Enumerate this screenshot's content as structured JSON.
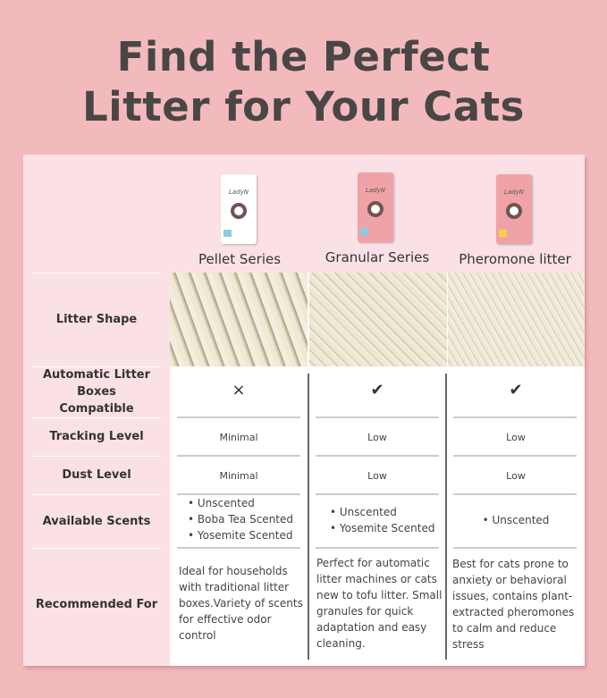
{
  "title": {
    "line1": "Find the Perfect",
    "line2": "Litter for Your Cats"
  },
  "colors": {
    "background": "#f3babe",
    "label_column": "#fbe1e5",
    "pellet_box": "#ffffff",
    "granular_box": "#f0a3a6",
    "pheromone_box": "#f0a3a6"
  },
  "products": [
    {
      "name": "Pellet Series",
      "logo": "LadyN",
      "auto_compatible": "×",
      "auto_icon": "x-mark-icon",
      "tracking": "Minimal",
      "dust": "Minimal",
      "scents": [
        "• Unscented",
        "• Boba Tea Scented",
        "• Yosemite Scented"
      ],
      "recommended": "Ideal for households with traditional litter boxes.Variety of scents for effective odor control"
    },
    {
      "name": "Granular Series",
      "logo": "LadyN",
      "auto_compatible": "✔",
      "auto_icon": "check-mark-icon",
      "tracking": "Low",
      "dust": "Low",
      "scents": [
        "• Unscented",
        "• Yosemite Scented"
      ],
      "recommended": "Perfect for automatic litter machines or cats new to tofu litter. Small granules for quick adaptation and easy cleaning."
    },
    {
      "name": "Pheromone litter",
      "logo": "LadyN",
      "auto_compatible": "✔",
      "auto_icon": "check-mark-icon",
      "tracking": "Low",
      "dust": "Low",
      "scents": [
        "• Unscented"
      ],
      "recommended": "Best for cats prone to anxiety or behavioral issues, contains plant-extracted pheromones to calm and reduce stress"
    }
  ],
  "row_labels": {
    "litter_shape": "Litter Shape",
    "auto_line1": "Automatic Litter Boxes",
    "auto_line2": "Compatible",
    "tracking": "Tracking Level",
    "dust": "Dust Level",
    "scents": "Available Scents",
    "recommended": "Recommended For"
  }
}
